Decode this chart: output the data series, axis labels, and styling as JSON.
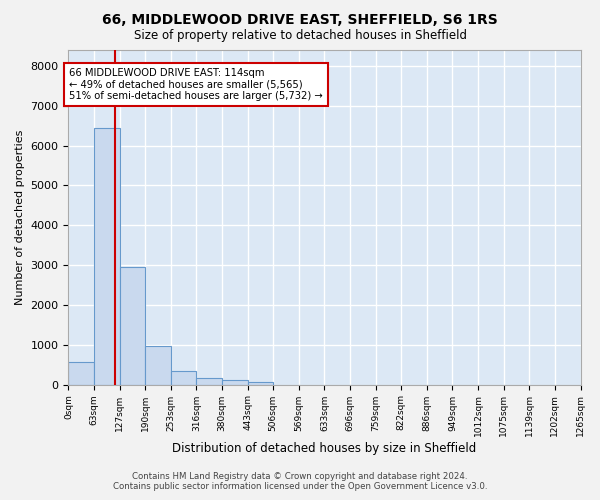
{
  "title1": "66, MIDDLEWOOD DRIVE EAST, SHEFFIELD, S6 1RS",
  "title2": "Size of property relative to detached houses in Sheffield",
  "xlabel": "Distribution of detached houses by size in Sheffield",
  "ylabel": "Number of detached properties",
  "bar_values": [
    560,
    6440,
    2940,
    970,
    340,
    155,
    105,
    75,
    0,
    0,
    0,
    0,
    0,
    0,
    0,
    0,
    0,
    0,
    0,
    0
  ],
  "bar_labels": [
    "0sqm",
    "63sqm",
    "127sqm",
    "190sqm",
    "253sqm",
    "316sqm",
    "380sqm",
    "443sqm",
    "506sqm",
    "569sqm",
    "633sqm",
    "696sqm",
    "759sqm",
    "822sqm",
    "886sqm",
    "949sqm",
    "1012sqm",
    "1075sqm",
    "1139sqm",
    "1202sqm",
    "1265sqm"
  ],
  "bar_color": "#c9d9ee",
  "bar_edgecolor": "#6699cc",
  "bar_linewidth": 0.8,
  "vline_x": 1.81,
  "vline_color": "#cc0000",
  "vline_linewidth": 1.5,
  "annotation_line1": "66 MIDDLEWOOD DRIVE EAST: 114sqm",
  "annotation_line2": "← 49% of detached houses are smaller (5,565)",
  "annotation_line3": "51% of semi-detached houses are larger (5,732) →",
  "annotation_box_edgecolor": "#cc0000",
  "annotation_bg": "#ffffff",
  "ylim": [
    0,
    8400
  ],
  "yticks": [
    0,
    1000,
    2000,
    3000,
    4000,
    5000,
    6000,
    7000,
    8000
  ],
  "background_color": "#dce8f5",
  "grid_color": "#ffffff",
  "fig_background": "#f2f2f2",
  "footer1": "Contains HM Land Registry data © Crown copyright and database right 2024.",
  "footer2": "Contains public sector information licensed under the Open Government Licence v3.0."
}
